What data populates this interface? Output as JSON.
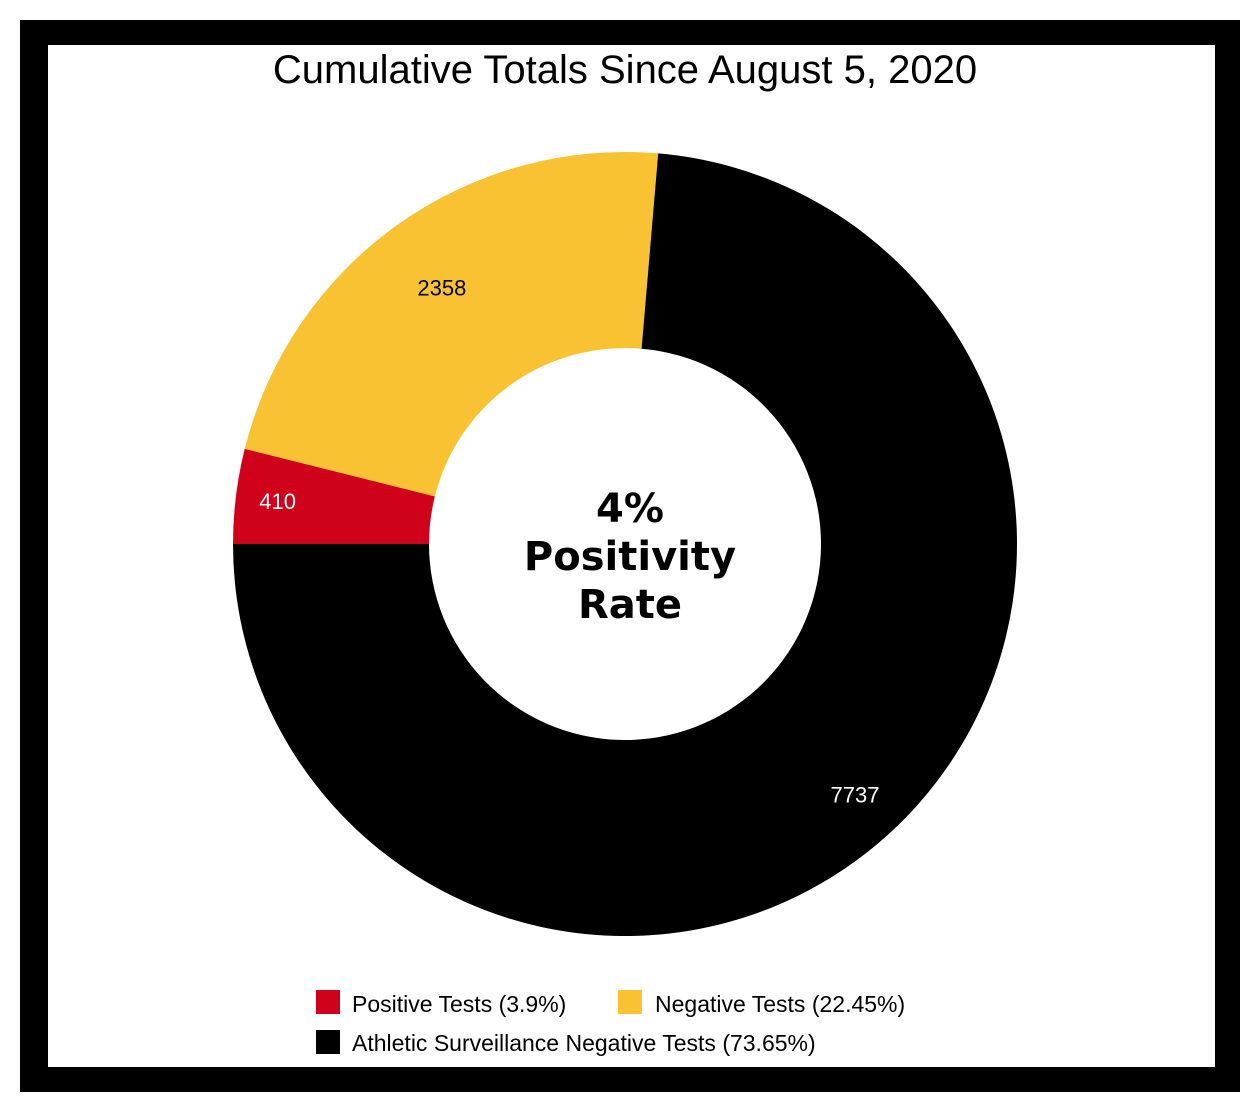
{
  "chart_data": {
    "type": "pie",
    "title": "Cumulative Totals Since August 5, 2020",
    "center_label": [
      "4%",
      "Positivity",
      "Rate"
    ],
    "slices": [
      {
        "name": "Positive Tests",
        "value": 410,
        "percent_label": "Positive Tests (3.9%)",
        "color": "#D0021B",
        "label_color": "#FFFFFF"
      },
      {
        "name": "Negative Tests",
        "value": 2358,
        "percent_label": "Negative Tests (22.45%)",
        "color": "#F8C233",
        "label_color": "#000000"
      },
      {
        "name": "Athletic Surveillance Negative Tests",
        "value": 7737,
        "percent_label": "Athletic Surveillance Negative Tests (73.65%)",
        "color": "#000000",
        "label_color": "#FFFFFF"
      }
    ],
    "legend_position": "bottom"
  }
}
